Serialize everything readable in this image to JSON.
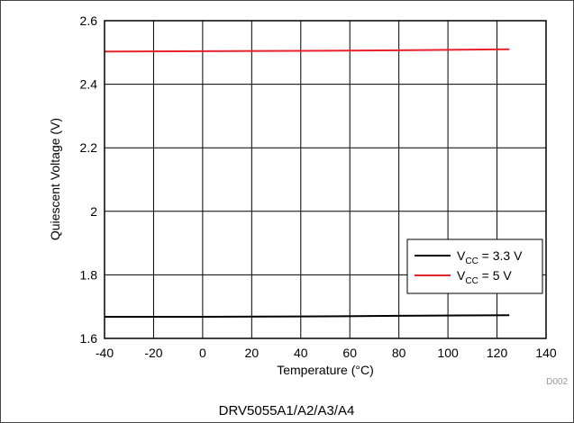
{
  "chart_data": {
    "type": "line",
    "title": "",
    "xlabel": "Temperature (°C)",
    "ylabel": "Quiescent Voltage (V)",
    "xlim": [
      -40,
      140
    ],
    "ylim": [
      1.6,
      2.6
    ],
    "x_ticks": [
      -40,
      -20,
      0,
      20,
      40,
      60,
      80,
      100,
      120,
      140
    ],
    "y_ticks": [
      1.6,
      1.8,
      2,
      2.2,
      2.4,
      2.6
    ],
    "grid": true,
    "legend_position": "bottom-right",
    "series": [
      {
        "name_main": "V",
        "name_sub": "CC",
        "name_rest": " = 3.3 V",
        "color": "#000000",
        "x": [
          -40,
          0,
          40,
          80,
          125
        ],
        "y": [
          1.668,
          1.668,
          1.669,
          1.671,
          1.673
        ]
      },
      {
        "name_main": "V",
        "name_sub": "CC",
        "name_rest": " = 5 V",
        "color": "#e8212b",
        "x": [
          -40,
          0,
          40,
          80,
          125
        ],
        "y": [
          2.503,
          2.504,
          2.505,
          2.507,
          2.51
        ]
      }
    ],
    "figure_code": "D002",
    "footer": "DRV5055A1/A2/A3/A4"
  }
}
